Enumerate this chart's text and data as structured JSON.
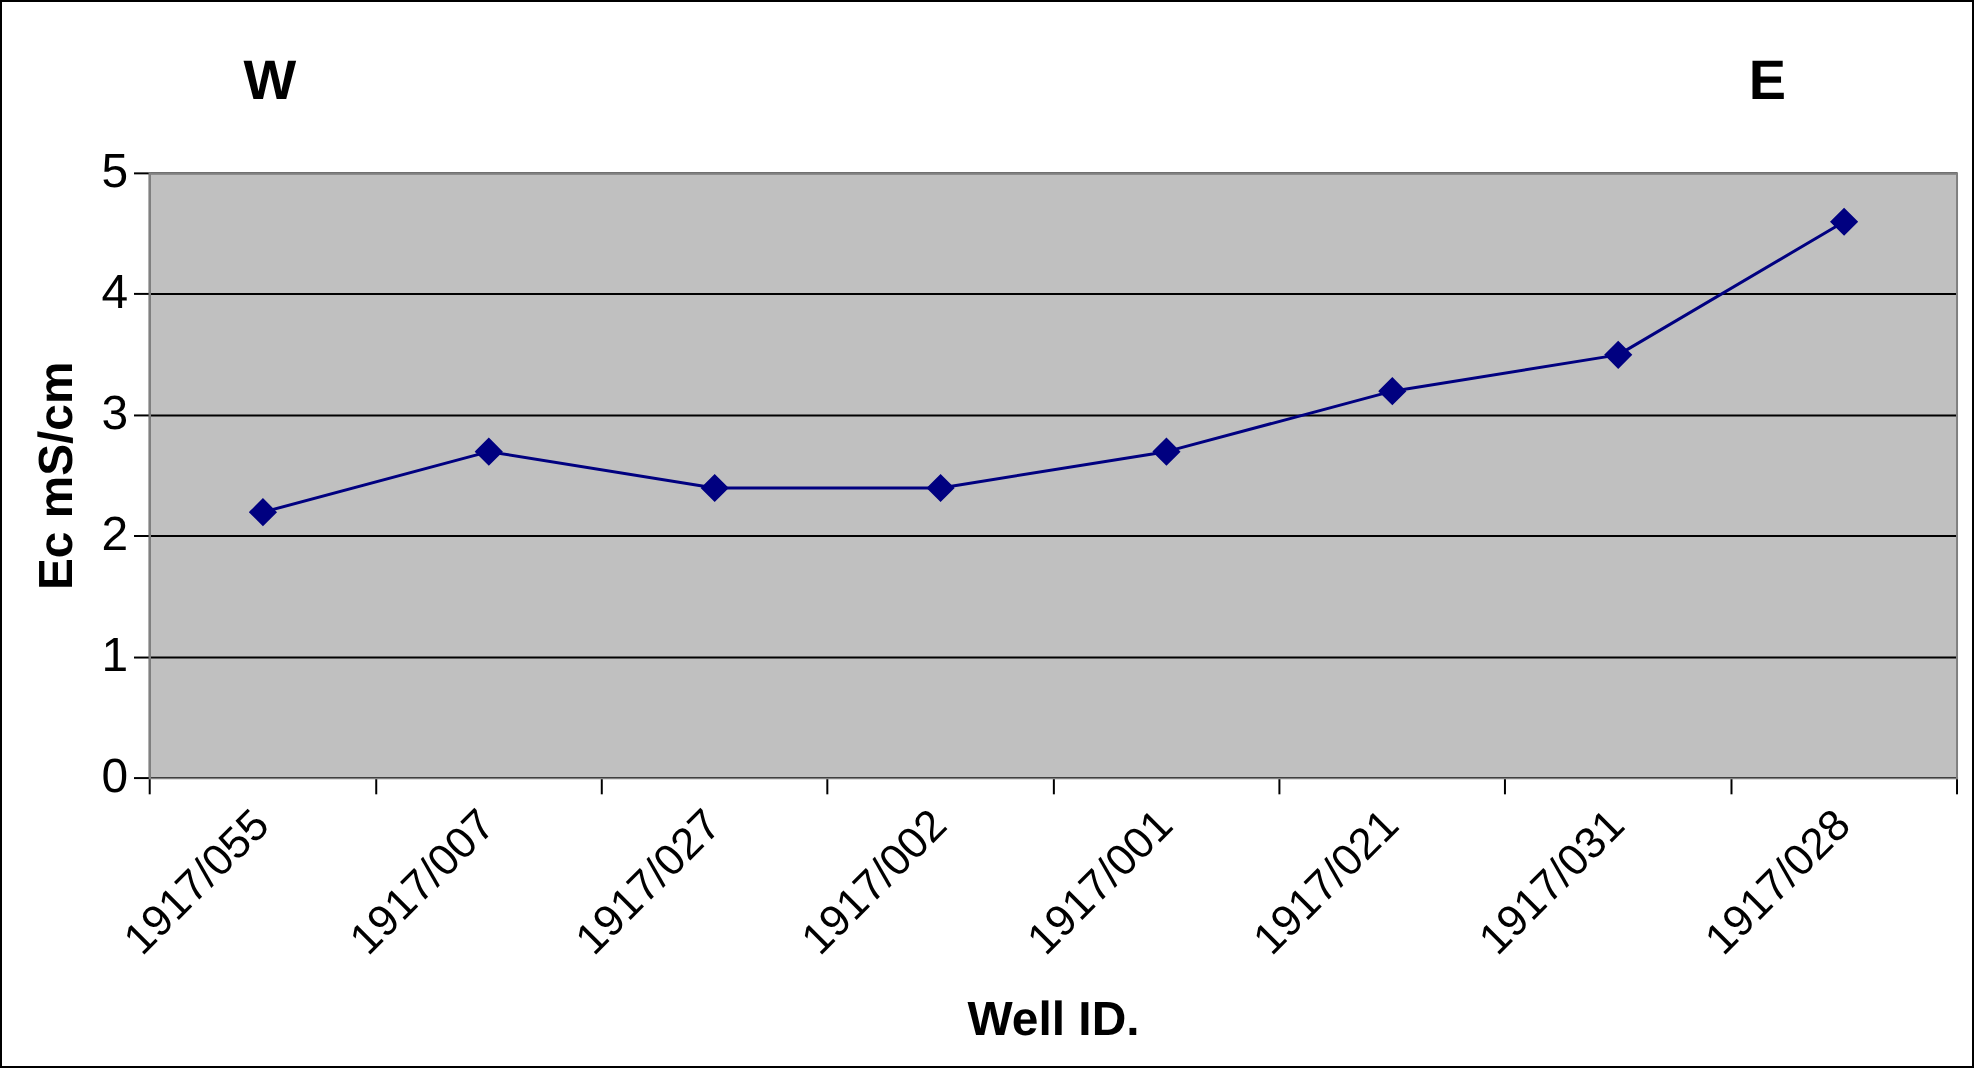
{
  "chart_data": {
    "type": "line",
    "xlabel": "Well ID.",
    "ylabel": "Ec mS/cm",
    "annotations": [
      "W",
      "E"
    ],
    "categories": [
      "1917/055",
      "1917/007",
      "1917/027",
      "1917/002",
      "1917/001",
      "1917/021",
      "1917/031",
      "1917/028"
    ],
    "series": [
      {
        "color": "#000080",
        "values": [
          2.2,
          2.7,
          2.4,
          2.4,
          2.7,
          3.2,
          3.5,
          4.6
        ]
      }
    ],
    "ylim": [
      0,
      5
    ],
    "yticks": [
      0,
      1,
      2,
      3,
      4,
      5
    ],
    "grid": "y",
    "marker": "diamond",
    "line_style": "solid",
    "legend": false
  }
}
